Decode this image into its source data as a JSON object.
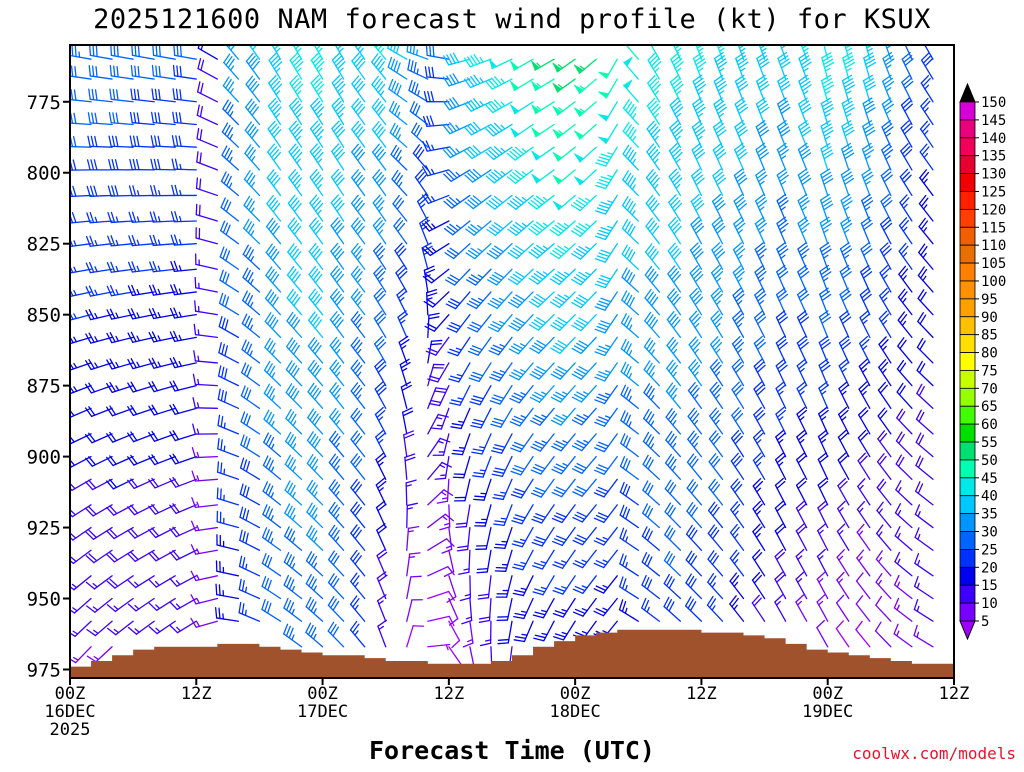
{
  "chart_data": {
    "type": "wind_barb_profile",
    "title": "2025121600 NAM forecast wind profile (kt) for KSUX",
    "xlabel": "Forecast Time (UTC)",
    "ylabel": "",
    "credit": "coolwx.com/models",
    "x_unit": "forecast hour",
    "xlim": [
      0,
      84
    ],
    "x_ticks": [
      {
        "hour": 0,
        "line1": "00Z",
        "line2": "16DEC",
        "line3": "2025"
      },
      {
        "hour": 12,
        "line1": "12Z",
        "line2": "",
        "line3": ""
      },
      {
        "hour": 24,
        "line1": "00Z",
        "line2": "17DEC",
        "line3": ""
      },
      {
        "hour": 36,
        "line1": "12Z",
        "line2": "",
        "line3": ""
      },
      {
        "hour": 48,
        "line1": "00Z",
        "line2": "18DEC",
        "line3": ""
      },
      {
        "hour": 60,
        "line1": "12Z",
        "line2": "",
        "line3": ""
      },
      {
        "hour": 72,
        "line1": "00Z",
        "line2": "19DEC",
        "line3": ""
      },
      {
        "hour": 84,
        "line1": "12Z",
        "line2": "",
        "line3": ""
      }
    ],
    "y_unit": "hPa",
    "ylim": [
      978,
      755
    ],
    "y_ticks": [
      "775",
      "800",
      "825",
      "850",
      "875",
      "900",
      "925",
      "950",
      "975"
    ],
    "colorbar": {
      "unit": "kt",
      "labels": [
        "150",
        "145",
        "140",
        "135",
        "130",
        "125",
        "120",
        "115",
        "110",
        "105",
        "100",
        "95",
        "90",
        "85",
        "80",
        "75",
        "70",
        "65",
        "60",
        "55",
        "50",
        "45",
        "40",
        "35",
        "30",
        "25",
        "20",
        "15",
        "10",
        "5"
      ],
      "colors": [
        "#d800d8",
        "#e8007c",
        "#f0005a",
        "#e60032",
        "#f00000",
        "#ff2000",
        "#ff4000",
        "#f06000",
        "#e87000",
        "#ff7f00",
        "#ff9000",
        "#ffa000",
        "#ffc000",
        "#ffdf00",
        "#ffff00",
        "#c8ff00",
        "#96ff00",
        "#40ff00",
        "#00e000",
        "#00e070",
        "#00ffb0",
        "#00e8e8",
        "#00c8ff",
        "#0096ff",
        "#0064ff",
        "#0032ff",
        "#0000f0",
        "#3c00ff",
        "#7800ff",
        "#a000ff"
      ]
    },
    "terrain": {
      "color": "#a0522d",
      "hours": [
        0,
        2,
        4,
        6,
        8,
        10,
        12,
        14,
        16,
        18,
        20,
        22,
        24,
        26,
        28,
        30,
        32,
        34,
        36,
        38,
        40,
        42,
        44,
        46,
        48,
        50,
        52,
        54,
        56,
        58,
        60,
        62,
        64,
        66,
        68,
        70,
        72,
        74,
        76,
        78,
        80,
        82,
        84
      ],
      "pressure": [
        974,
        972,
        970,
        968,
        967,
        967,
        967,
        966,
        966,
        967,
        968,
        969,
        970,
        970,
        971,
        972,
        972,
        973,
        973,
        973,
        972,
        970,
        967,
        965,
        963,
        962,
        961,
        961,
        961,
        961,
        962,
        962,
        963,
        964,
        966,
        968,
        969,
        970,
        971,
        972,
        973,
        973,
        972
      ]
    },
    "wind_barbs": {
      "pressure_levels": [
        760,
        767,
        775,
        783,
        791,
        799,
        808,
        817,
        825,
        834,
        842,
        850,
        858,
        867,
        875,
        883,
        892,
        900,
        908,
        917,
        925,
        933,
        942,
        950,
        958,
        967,
        975
      ],
      "rows": [
        {
          "hour": 0,
          "dir_top": 280,
          "spd_top": 33,
          "dir_bot": 220,
          "spd_bot": 13
        },
        {
          "hour": 2,
          "dir_top": 280,
          "spd_top": 33,
          "dir_bot": 222,
          "spd_bot": 14
        },
        {
          "hour": 4,
          "dir_top": 280,
          "spd_top": 32,
          "dir_bot": 225,
          "spd_bot": 14
        },
        {
          "hour": 6,
          "dir_top": 280,
          "spd_top": 32,
          "dir_bot": 228,
          "spd_bot": 15
        },
        {
          "hour": 8,
          "dir_top": 280,
          "spd_top": 31,
          "dir_bot": 230,
          "spd_bot": 15
        },
        {
          "hour": 10,
          "dir_top": 280,
          "spd_top": 31,
          "dir_bot": 232,
          "spd_bot": 15
        },
        {
          "hour": 12,
          "dir_top": 280,
          "spd_top": 30,
          "dir_bot": 235,
          "spd_bot": 15
        },
        {
          "hour": 14,
          "dir_top": 300,
          "spd_top": 20,
          "dir_bot": 250,
          "spd_bot": 12
        },
        {
          "hour": 16,
          "dir_top": 320,
          "spd_top": 36,
          "dir_bot": 275,
          "spd_bot": 22
        },
        {
          "hour": 18,
          "dir_top": 325,
          "spd_top": 40,
          "dir_bot": 290,
          "spd_bot": 25
        },
        {
          "hour": 20,
          "dir_top": 330,
          "spd_top": 44,
          "dir_bot": 300,
          "spd_bot": 30
        },
        {
          "hour": 22,
          "dir_top": 330,
          "spd_top": 46,
          "dir_bot": 305,
          "spd_bot": 32
        },
        {
          "hour": 24,
          "dir_top": 330,
          "spd_top": 46,
          "dir_bot": 310,
          "spd_bot": 33
        },
        {
          "hour": 26,
          "dir_top": 330,
          "spd_top": 44,
          "dir_bot": 315,
          "spd_bot": 30
        },
        {
          "hour": 28,
          "dir_top": 325,
          "spd_top": 43,
          "dir_bot": 320,
          "spd_bot": 25
        },
        {
          "hour": 30,
          "dir_top": 320,
          "spd_top": 45,
          "dir_bot": 340,
          "spd_bot": 15
        },
        {
          "hour": 32,
          "dir_top": 300,
          "spd_top": 40,
          "dir_bot": 20,
          "spd_bot": 8
        },
        {
          "hour": 34,
          "dir_top": 290,
          "spd_top": 35,
          "dir_bot": 90,
          "spd_bot": 6
        },
        {
          "hour": 36,
          "dir_top": 280,
          "spd_top": 30,
          "dir_bot": 140,
          "spd_bot": 8
        },
        {
          "hour": 38,
          "dir_top": 255,
          "spd_top": 40,
          "dir_bot": 165,
          "spd_bot": 12
        },
        {
          "hour": 40,
          "dir_top": 250,
          "spd_top": 45,
          "dir_bot": 175,
          "spd_bot": 15
        },
        {
          "hour": 42,
          "dir_top": 245,
          "spd_top": 48,
          "dir_bot": 185,
          "spd_bot": 18
        },
        {
          "hour": 44,
          "dir_top": 240,
          "spd_top": 52,
          "dir_bot": 200,
          "spd_bot": 20
        },
        {
          "hour": 46,
          "dir_top": 240,
          "spd_top": 55,
          "dir_bot": 205,
          "spd_bot": 20
        },
        {
          "hour": 48,
          "dir_top": 235,
          "spd_top": 57,
          "dir_bot": 210,
          "spd_bot": 20
        },
        {
          "hour": 50,
          "dir_top": 230,
          "spd_top": 55,
          "dir_bot": 215,
          "spd_bot": 20
        },
        {
          "hour": 52,
          "dir_top": 210,
          "spd_top": 52,
          "dir_bot": 220,
          "spd_bot": 20
        },
        {
          "hour": 54,
          "dir_top": 320,
          "spd_top": 50,
          "dir_bot": 300,
          "spd_bot": 22
        },
        {
          "hour": 56,
          "dir_top": 330,
          "spd_top": 48,
          "dir_bot": 305,
          "spd_bot": 25
        },
        {
          "hour": 58,
          "dir_top": 335,
          "spd_top": 47,
          "dir_bot": 310,
          "spd_bot": 27
        },
        {
          "hour": 60,
          "dir_top": 340,
          "spd_top": 46,
          "dir_bot": 312,
          "spd_bot": 26
        },
        {
          "hour": 62,
          "dir_top": 340,
          "spd_top": 45,
          "dir_bot": 315,
          "spd_bot": 25
        },
        {
          "hour": 64,
          "dir_top": 340,
          "spd_top": 44,
          "dir_bot": 320,
          "spd_bot": 22
        },
        {
          "hour": 66,
          "dir_top": 340,
          "spd_top": 43,
          "dir_bot": 325,
          "spd_bot": 18
        },
        {
          "hour": 68,
          "dir_top": 340,
          "spd_top": 42,
          "dir_bot": 330,
          "spd_bot": 15
        },
        {
          "hour": 70,
          "dir_top": 340,
          "spd_top": 45,
          "dir_bot": 330,
          "spd_bot": 12
        },
        {
          "hour": 72,
          "dir_top": 345,
          "spd_top": 48,
          "dir_bot": 330,
          "spd_bot": 10
        },
        {
          "hour": 74,
          "dir_top": 345,
          "spd_top": 47,
          "dir_bot": 325,
          "spd_bot": 8
        },
        {
          "hour": 76,
          "dir_top": 345,
          "spd_top": 43,
          "dir_bot": 320,
          "spd_bot": 8
        },
        {
          "hour": 78,
          "dir_top": 340,
          "spd_top": 38,
          "dir_bot": 315,
          "spd_bot": 10
        },
        {
          "hour": 80,
          "dir_top": 335,
          "spd_top": 32,
          "dir_bot": 305,
          "spd_bot": 12
        },
        {
          "hour": 82,
          "dir_top": 330,
          "spd_top": 28,
          "dir_bot": 300,
          "spd_bot": 14
        }
      ]
    }
  }
}
